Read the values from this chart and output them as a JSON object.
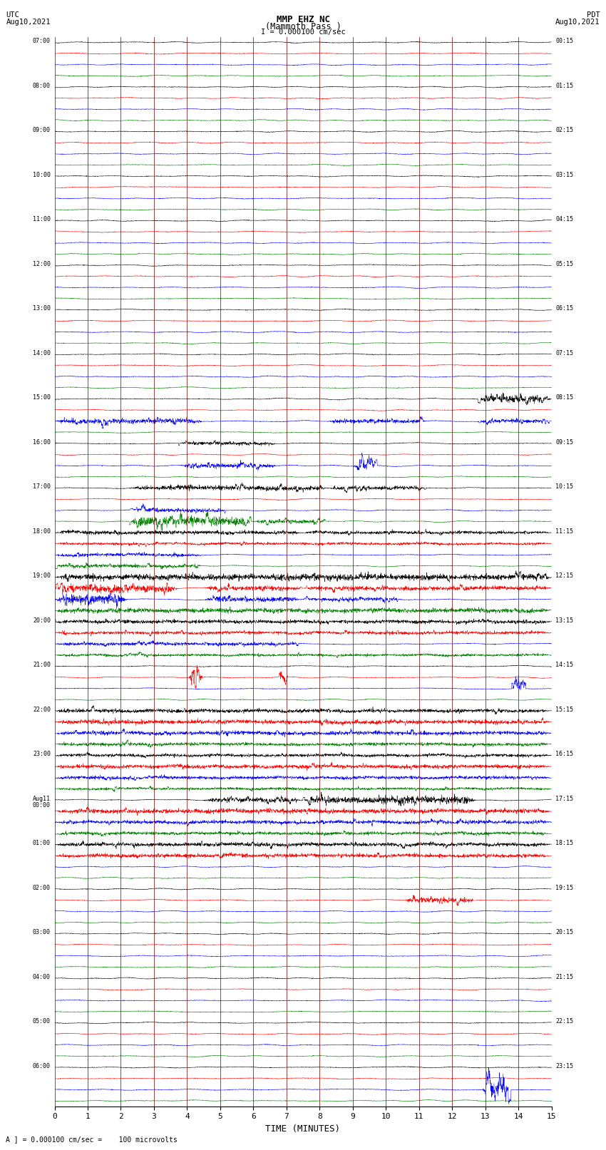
{
  "title_line1": "MMP EHZ NC",
  "title_line2": "(Mammoth Pass )",
  "scale_text": "I = 0.000100 cm/sec",
  "left_label": "UTC",
  "left_date": "Aug10,2021",
  "right_label": "PDT",
  "right_date": "Aug10,2021",
  "bottom_label": "TIME (MINUTES)",
  "footnote": "A ] = 0.000100 cm/sec =    100 microvolts",
  "utc_times": [
    "07:00",
    "08:00",
    "09:00",
    "10:00",
    "11:00",
    "12:00",
    "13:00",
    "14:00",
    "15:00",
    "16:00",
    "17:00",
    "18:00",
    "19:00",
    "20:00",
    "21:00",
    "22:00",
    "23:00",
    "Aug11\n00:00",
    "01:00",
    "02:00",
    "03:00",
    "04:00",
    "05:00",
    "06:00"
  ],
  "pdt_times": [
    "00:15",
    "01:15",
    "02:15",
    "03:15",
    "04:15",
    "05:15",
    "06:15",
    "07:15",
    "08:15",
    "09:15",
    "10:15",
    "11:15",
    "12:15",
    "13:15",
    "14:15",
    "15:15",
    "16:15",
    "17:15",
    "18:15",
    "19:15",
    "20:15",
    "21:15",
    "22:15",
    "23:15"
  ],
  "n_rows": 24,
  "traces_per_row": 4,
  "trace_colors": [
    "black",
    "red",
    "blue",
    "green"
  ],
  "background_color": "white",
  "grid_color": "#880000",
  "x_min": 0,
  "x_max": 15,
  "x_ticks": [
    0,
    1,
    2,
    3,
    4,
    5,
    6,
    7,
    8,
    9,
    10,
    11,
    12,
    13,
    14,
    15
  ]
}
